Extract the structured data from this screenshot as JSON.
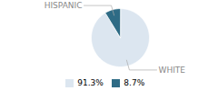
{
  "chart_data": {
    "type": "pie",
    "categories": [
      "WHITE",
      "HISPANIC"
    ],
    "values": [
      91.3,
      8.7
    ],
    "value_labels": [
      "91.3%",
      "8.7%"
    ],
    "colors": [
      "#dce6f0",
      "#2e6b85"
    ],
    "legend": "bottom"
  }
}
